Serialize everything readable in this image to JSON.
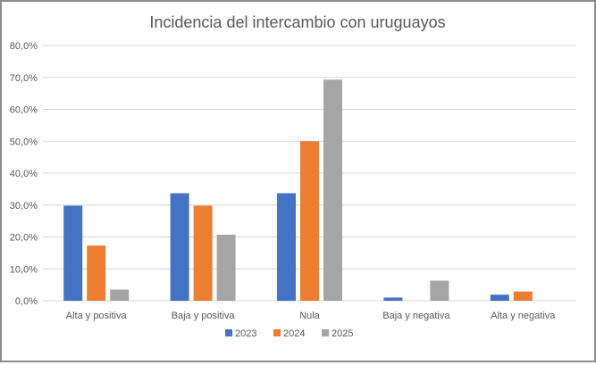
{
  "chart_data": {
    "type": "bar",
    "title": "Incidencia del intercambio con uruguayos",
    "xlabel": "",
    "ylabel": "",
    "categories": [
      "Alta y positiva",
      "Baja y positiva",
      "Nula",
      "Baja y negativa",
      "Alta y negativa"
    ],
    "series": [
      {
        "name": "2023",
        "color": "#4472C4",
        "values": [
          29.8,
          33.7,
          33.7,
          1.0,
          1.9
        ]
      },
      {
        "name": "2024",
        "color": "#ED7D31",
        "values": [
          17.3,
          29.8,
          50.0,
          0.0,
          2.9
        ]
      },
      {
        "name": "2025",
        "color": "#A5A5A5",
        "values": [
          3.5,
          20.7,
          69.3,
          6.3,
          0.0
        ]
      }
    ],
    "ylim": [
      0,
      80
    ],
    "yticks": [
      0,
      10,
      20,
      30,
      40,
      50,
      60,
      70,
      80
    ],
    "ytick_labels": [
      "0,0%",
      "10,0%",
      "20,0%",
      "30,0%",
      "40,0%",
      "50,0%",
      "60,0%",
      "70,0%",
      "80,0%"
    ],
    "grid": true,
    "legend_position": "bottom",
    "frame_color": "#8C8C8C",
    "gridline_color": "#D9D9D9",
    "text_color": "#595959"
  }
}
